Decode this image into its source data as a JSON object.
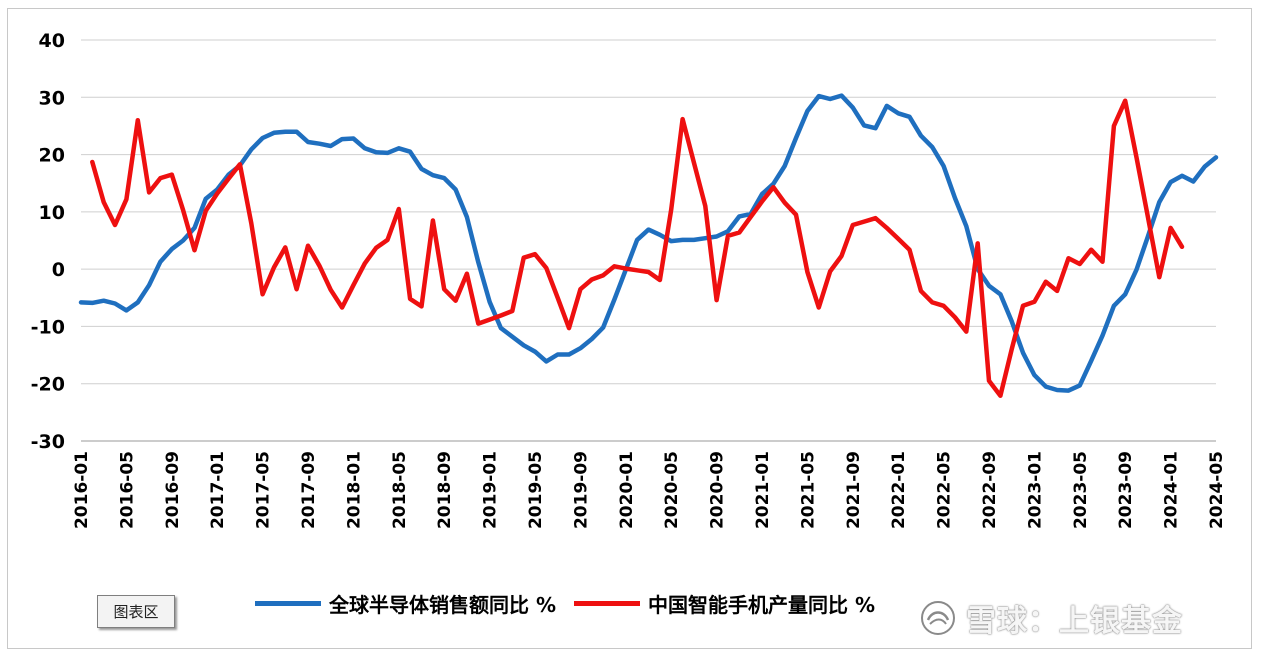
{
  "chart_data": {
    "type": "line",
    "title": "",
    "xlabel": "",
    "ylabel": "",
    "ylim": [
      -30,
      40
    ],
    "yticks": [
      40,
      30,
      20,
      10,
      0,
      -10,
      -20,
      -30
    ],
    "grid": true,
    "legend_position": "bottom",
    "x_tick_labels": [
      "2016-01",
      "2016-05",
      "2016-09",
      "2017-01",
      "2017-05",
      "2017-09",
      "2018-01",
      "2018-05",
      "2018-09",
      "2019-01",
      "2019-05",
      "2019-09",
      "2020-01",
      "2020-05",
      "2020-09",
      "2021-01",
      "2021-05",
      "2021-09",
      "2022-01",
      "2022-05",
      "2022-09",
      "2023-01",
      "2023-05",
      "2023-09",
      "2024-01",
      "2024-05"
    ],
    "series": [
      {
        "name": "全球半导体销售额同比 %",
        "color": "#1f6fbf",
        "start": "2016-01",
        "values": [
          -5.8,
          -5.9,
          -5.5,
          -6,
          -7.2,
          -5.8,
          -2.8,
          1.3,
          3.5,
          5,
          7.2,
          12.3,
          13.9,
          16.5,
          18.1,
          20.9,
          22.9,
          23.8,
          24,
          24,
          22.2,
          21.9,
          21.5,
          22.7,
          22.8,
          21.1,
          20.4,
          20.3,
          21.1,
          20.5,
          17.5,
          16.4,
          15.9,
          13.9,
          9.1,
          1.2,
          -5.7,
          -10.3,
          -11.8,
          -13.3,
          -14.4,
          -16.1,
          -14.9,
          -14.9,
          -13.8,
          -12.2,
          -10.2,
          -5.3,
          -0.1,
          5.1,
          6.9,
          6,
          4.9,
          5.1,
          5.1,
          5.4,
          5.7,
          6.6,
          9.2,
          9.6,
          13.1,
          14.9,
          18,
          22.9,
          27.6,
          30.2,
          29.7,
          30.3,
          28.2,
          25.1,
          24.6,
          28.5,
          27.2,
          26.6,
          23.3,
          21.3,
          18,
          12.4,
          7.5,
          0,
          -2.9,
          -4.4,
          -9.1,
          -14.6,
          -18.5,
          -20.5,
          -21.1,
          -21.2,
          -20.3,
          -16,
          -11.6,
          -6.4,
          -4.4,
          -0.1,
          5.7,
          11.7,
          15.2,
          16.3,
          15.3,
          17.9,
          19.5
        ]
      },
      {
        "name": "中国智能手机产量同比 %",
        "color": "#ee1010",
        "start": "2016-02",
        "values": [
          18.7,
          11.7,
          7.7,
          12.2,
          26,
          13.4,
          15.9,
          16.5,
          10.3,
          3.3,
          10.2,
          13.2,
          15.8,
          18.3,
          8,
          -4.4,
          0.3,
          3.8,
          -3.5,
          4.1,
          0.6,
          -3.6,
          -6.7,
          -2.8,
          1,
          3.7,
          5.1,
          10.5,
          -5.2,
          -6.5,
          8.5,
          -3.5,
          -5.5,
          -0.8,
          -9.5,
          -8.8,
          -8.1,
          -7.3,
          2,
          2.6,
          0.2,
          -5,
          -10.3,
          -3.5,
          -1.8,
          -1.1,
          0.5,
          0.1,
          -0.2,
          -0.5,
          -1.9,
          10.4,
          26.2,
          18.6,
          11,
          -5.4,
          5.8,
          6.4,
          9.1,
          11.8,
          14.3,
          11.6,
          9.5,
          -0.5,
          -6.7,
          -0.4,
          2.3,
          7.7,
          8.3,
          8.9,
          7.2,
          5.3,
          3.4,
          -3.8,
          -5.8,
          -6.4,
          -8.4,
          -10.9,
          4.5,
          -19.5,
          -22.1,
          -14,
          -6.4,
          -5.7,
          -2.2,
          -3.8,
          1.9,
          0.9,
          3.4,
          1.3,
          25,
          29.4,
          19.5,
          9.1,
          -1.4,
          7.2,
          3.9
        ]
      }
    ]
  },
  "ui": {
    "chart_area_label": "图表区",
    "watermark_text": "雪球：上银基金"
  }
}
